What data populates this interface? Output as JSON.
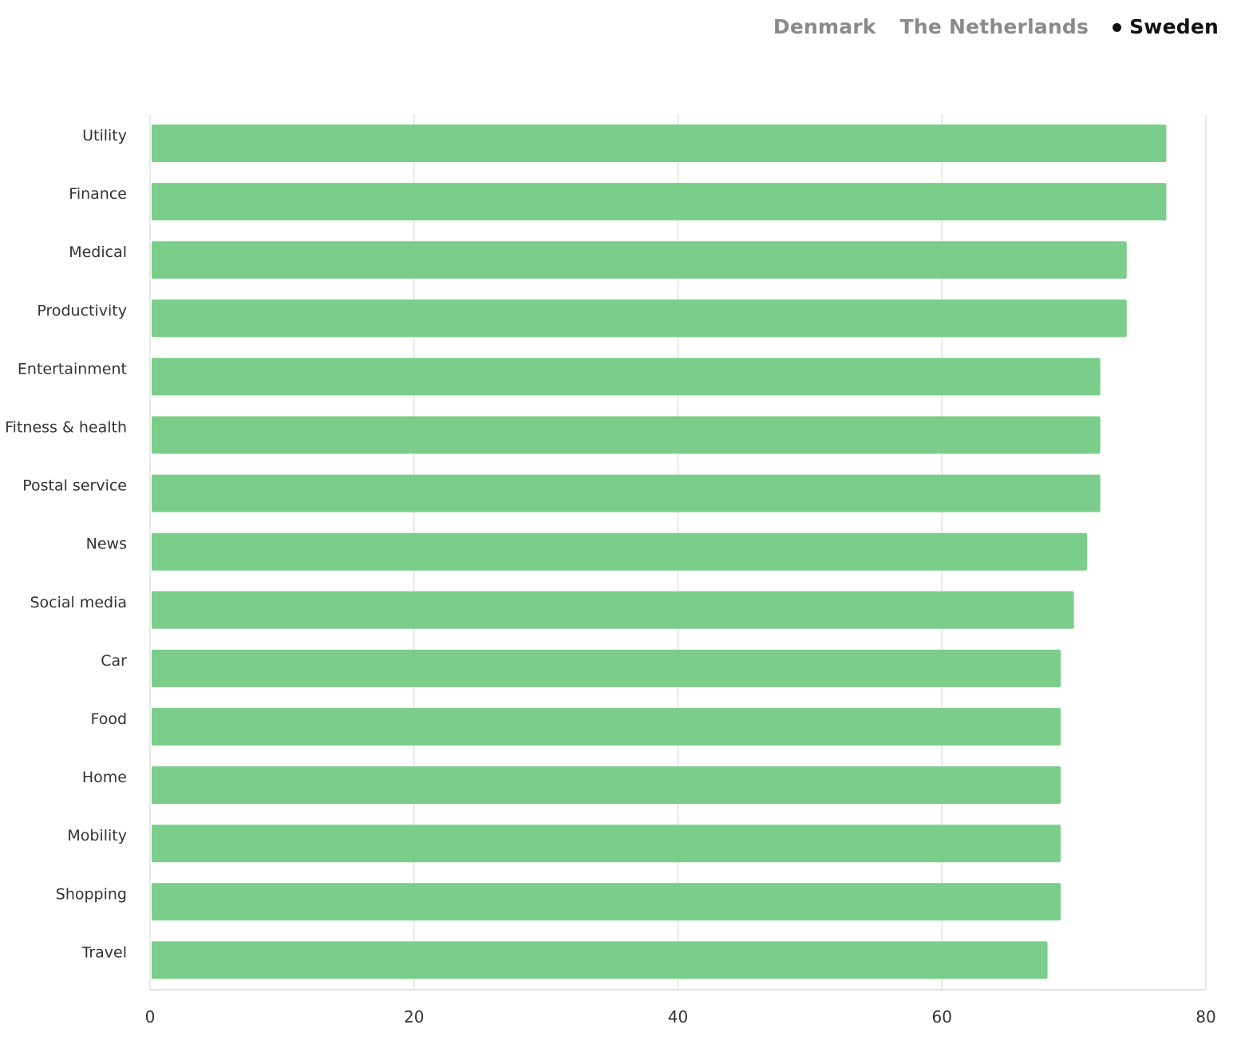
{
  "tabs": [
    {
      "label": "Denmark",
      "active": false
    },
    {
      "label": "The Netherlands",
      "active": false
    },
    {
      "label": "Sweden",
      "active": true
    }
  ],
  "colors": {
    "bar": "#77cc86",
    "grid": "#e2e2e2",
    "tab_inactive": "#8a8a8a",
    "tab_active": "#111111"
  },
  "chart_data": {
    "type": "bar",
    "orientation": "horizontal",
    "categories": [
      "Utility",
      "Finance",
      "Medical",
      "Productivity",
      "Entertainment",
      "Fitness & health",
      "Postal service",
      "News",
      "Social media",
      "Car",
      "Food",
      "Home",
      "Mobility",
      "Shopping",
      "Travel"
    ],
    "values": [
      77,
      77,
      74,
      74,
      72,
      72,
      72,
      71,
      70,
      69,
      69,
      69,
      69,
      69,
      68
    ],
    "xlim": [
      0,
      80
    ],
    "xticks": [
      0,
      20,
      40,
      60,
      80
    ],
    "grid": true
  }
}
